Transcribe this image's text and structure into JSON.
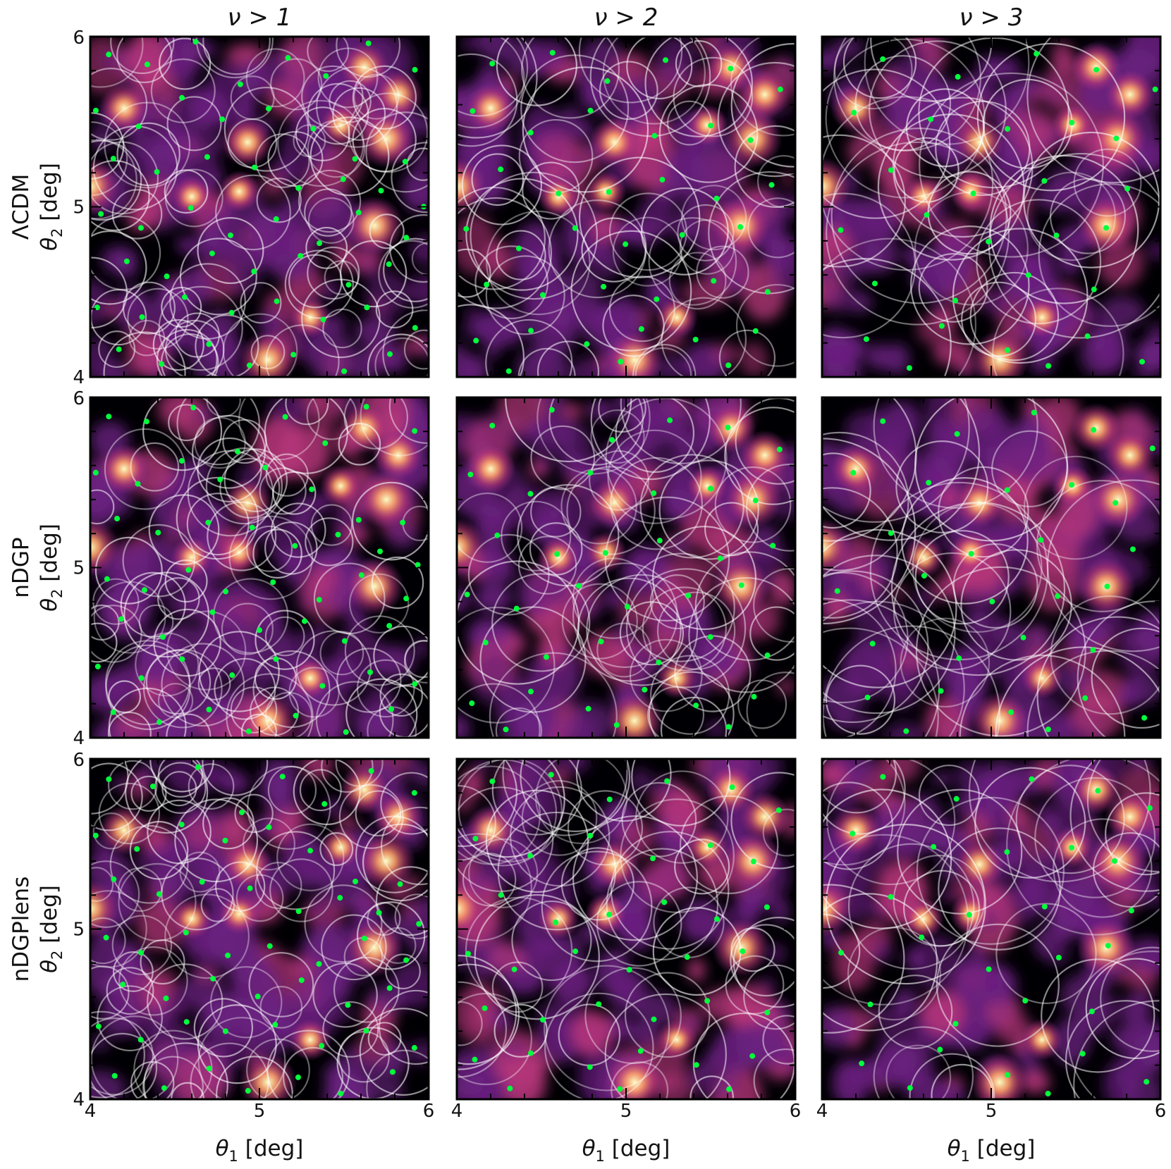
{
  "colors": {
    "background_map_low": "#000004",
    "background_map_mid": "#8a2c8b",
    "background_map_high": "#fcfdbf",
    "peak_marker": "#00ff3c",
    "void_circle": "#ffffff"
  },
  "columns": [
    "ν > 1",
    "ν > 2",
    "ν > 3"
  ],
  "rows": [
    "ΛCDM",
    "nDGP",
    "nDGPlens"
  ],
  "xlabel_prefix": "θ",
  "xlabel_sub": "1",
  "xlabel_suffix": " [deg]",
  "ylabel_prefix": "θ",
  "ylabel_sub": "2",
  "ylabel_suffix": " [deg]",
  "x_ticks": [
    "4",
    "5",
    "6"
  ],
  "y_ticks": [
    "6",
    "5",
    "4"
  ],
  "chart_data": {
    "type": "heatmap",
    "description_of_panels": "3x3 grid of convergence maps with overplotted voids (circles) and peaks (green dots) for thresholds ν > 1, 2, 3",
    "xlim": [
      4,
      6
    ],
    "ylim": [
      4,
      6
    ],
    "grid": false,
    "colormap": "magma",
    "panels": [
      {
        "row": "ΛCDM",
        "column": "ν > 1"
      },
      {
        "row": "ΛCDM",
        "column": "ν > 2"
      },
      {
        "row": "ΛCDM",
        "column": "ν > 3"
      },
      {
        "row": "nDGP",
        "column": "ν > 1"
      },
      {
        "row": "nDGP",
        "column": "ν > 2"
      },
      {
        "row": "nDGP",
        "column": "ν > 3"
      },
      {
        "row": "nDGPlens",
        "column": "ν > 1"
      },
      {
        "row": "nDGPlens",
        "column": "ν > 2"
      },
      {
        "row": "nDGPlens",
        "column": "ν > 3"
      }
    ],
    "bright_peaks_deg": [
      [
        5.48,
        5.48
      ],
      [
        5.62,
        5.82
      ],
      [
        5.75,
        5.4
      ],
      [
        4.88,
        5.09
      ],
      [
        4.93,
        5.38
      ],
      [
        5.68,
        4.89
      ],
      [
        4.6,
        5.06
      ],
      [
        5.82,
        5.66
      ],
      [
        4.0,
        5.12
      ],
      [
        5.3,
        4.35
      ],
      [
        4.2,
        5.58
      ],
      [
        5.05,
        4.1
      ]
    ],
    "peaks_deg": {
      "ν > 1": [
        [
          4.1,
          5.9
        ],
        [
          4.35,
          5.85
        ],
        [
          4.62,
          5.95
        ],
        [
          4.88,
          5.7
        ],
        [
          5.15,
          5.88
        ],
        [
          5.4,
          5.75
        ],
        [
          5.65,
          5.95
        ],
        [
          5.9,
          5.8
        ],
        [
          4.05,
          5.55
        ],
        [
          4.28,
          5.48
        ],
        [
          4.55,
          5.62
        ],
        [
          4.78,
          5.52
        ],
        [
          5.05,
          5.58
        ],
        [
          5.3,
          5.45
        ],
        [
          5.58,
          5.3
        ],
        [
          5.85,
          5.25
        ],
        [
          4.15,
          5.3
        ],
        [
          4.4,
          5.2
        ],
        [
          4.68,
          5.28
        ],
        [
          4.95,
          5.22
        ],
        [
          5.22,
          5.12
        ],
        [
          5.48,
          5.18
        ],
        [
          5.72,
          5.08
        ],
        [
          5.95,
          5.02
        ],
        [
          4.08,
          4.95
        ],
        [
          4.32,
          4.88
        ],
        [
          4.58,
          4.98
        ],
        [
          4.82,
          4.85
        ],
        [
          5.08,
          4.92
        ],
        [
          5.35,
          4.8
        ],
        [
          5.6,
          4.95
        ],
        [
          5.88,
          4.82
        ],
        [
          4.2,
          4.68
        ],
        [
          4.45,
          4.6
        ],
        [
          4.72,
          4.72
        ],
        [
          4.98,
          4.62
        ],
        [
          5.25,
          4.7
        ],
        [
          5.52,
          4.55
        ],
        [
          5.78,
          4.65
        ],
        [
          4.05,
          4.42
        ],
        [
          4.3,
          4.35
        ],
        [
          4.55,
          4.45
        ],
        [
          4.82,
          4.38
        ],
        [
          5.1,
          4.45
        ],
        [
          5.38,
          4.32
        ],
        [
          5.65,
          4.4
        ],
        [
          5.92,
          4.3
        ],
        [
          4.15,
          4.15
        ],
        [
          4.42,
          4.08
        ],
        [
          4.7,
          4.18
        ],
        [
          4.95,
          4.05
        ],
        [
          5.22,
          4.12
        ],
        [
          5.5,
          4.05
        ],
        [
          5.78,
          4.15
        ]
      ],
      "ν > 2": [
        [
          4.2,
          5.85
        ],
        [
          4.55,
          5.92
        ],
        [
          4.9,
          5.75
        ],
        [
          5.25,
          5.88
        ],
        [
          5.62,
          5.82
        ],
        [
          5.9,
          5.7
        ],
        [
          4.1,
          5.55
        ],
        [
          4.45,
          5.45
        ],
        [
          4.8,
          5.55
        ],
        [
          5.15,
          5.42
        ],
        [
          5.48,
          5.48
        ],
        [
          5.75,
          5.4
        ],
        [
          4.25,
          5.2
        ],
        [
          4.6,
          5.06
        ],
        [
          4.88,
          5.09
        ],
        [
          5.22,
          5.15
        ],
        [
          5.55,
          5.05
        ],
        [
          5.85,
          5.12
        ],
        [
          4.05,
          4.85
        ],
        [
          4.35,
          4.75
        ],
        [
          4.7,
          4.88
        ],
        [
          5.0,
          4.78
        ],
        [
          5.35,
          4.82
        ],
        [
          5.68,
          4.89
        ],
        [
          4.18,
          4.55
        ],
        [
          4.52,
          4.48
        ],
        [
          4.85,
          4.55
        ],
        [
          5.18,
          4.45
        ],
        [
          5.5,
          4.58
        ],
        [
          5.82,
          4.5
        ],
        [
          4.1,
          4.22
        ],
        [
          4.45,
          4.28
        ],
        [
          4.78,
          4.18
        ],
        [
          5.1,
          4.3
        ],
        [
          5.42,
          4.2
        ],
        [
          5.75,
          4.25
        ],
        [
          4.3,
          4.05
        ],
        [
          4.95,
          4.08
        ],
        [
          5.6,
          4.05
        ]
      ],
      "ν > 3": [
        [
          4.35,
          5.88
        ],
        [
          4.8,
          5.78
        ],
        [
          5.25,
          5.9
        ],
        [
          5.62,
          5.82
        ],
        [
          5.95,
          5.7
        ],
        [
          4.2,
          5.55
        ],
        [
          4.65,
          5.5
        ],
        [
          5.1,
          5.45
        ],
        [
          5.48,
          5.48
        ],
        [
          5.75,
          5.4
        ],
        [
          4.4,
          5.2
        ],
        [
          4.88,
          5.09
        ],
        [
          5.3,
          5.15
        ],
        [
          5.82,
          5.12
        ],
        [
          4.1,
          4.85
        ],
        [
          4.6,
          4.95
        ],
        [
          5.0,
          4.78
        ],
        [
          5.4,
          4.82
        ],
        [
          5.68,
          4.89
        ],
        [
          4.3,
          4.55
        ],
        [
          4.8,
          4.45
        ],
        [
          5.2,
          4.58
        ],
        [
          5.6,
          4.5
        ],
        [
          4.25,
          4.22
        ],
        [
          4.7,
          4.28
        ],
        [
          5.1,
          4.15
        ],
        [
          5.55,
          4.25
        ],
        [
          5.9,
          4.1
        ],
        [
          4.5,
          4.05
        ],
        [
          5.35,
          4.05
        ]
      ]
    },
    "void_count_by_threshold": {
      "ν > 1": "many",
      "ν > 2": "fewer",
      "ν > 3": "fewest"
    }
  }
}
